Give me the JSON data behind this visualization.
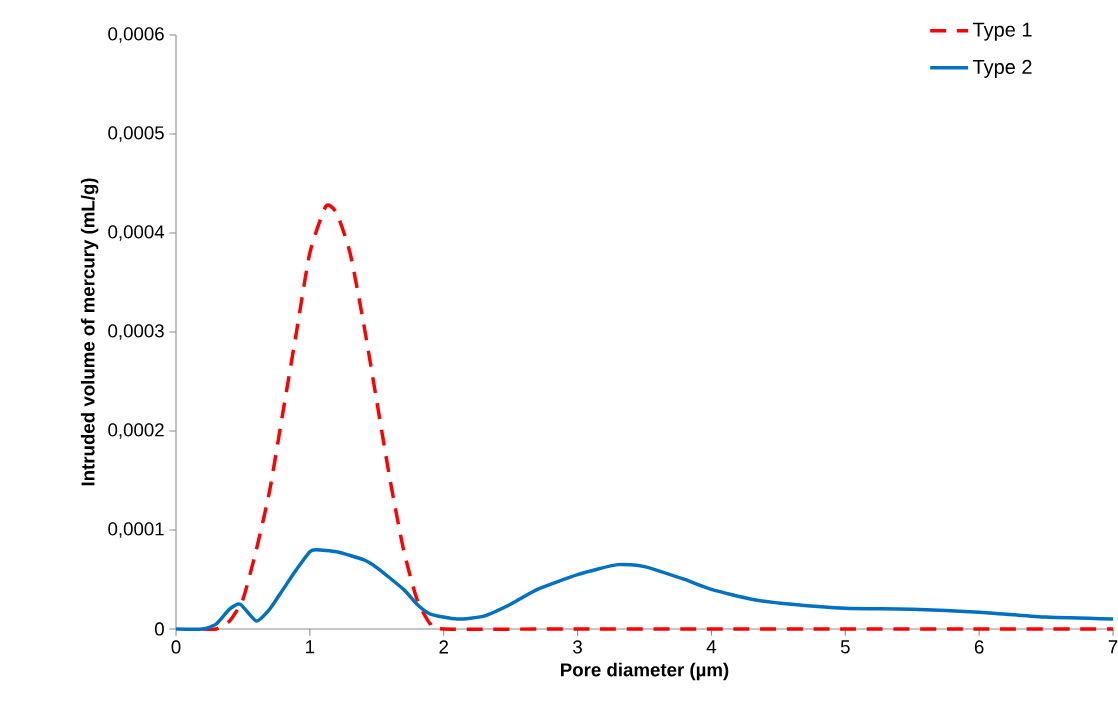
{
  "chart_data": {
    "type": "line",
    "xlabel": "Pore diameter (µm)",
    "ylabel": "Intruded volume of mercury (mL/g)",
    "xlim": [
      0,
      7
    ],
    "xticks": [
      0,
      1,
      2,
      3,
      4,
      5,
      6,
      7
    ],
    "ylim": [
      0,
      0.0006
    ],
    "yticks": [
      0,
      {
        "value": 0.0001,
        "label": "0,0001"
      },
      {
        "value": 0.0002,
        "label": "0,0002"
      },
      {
        "value": 0.0003,
        "label": "0,0003"
      },
      {
        "value": 0.0004,
        "label": "0,0004"
      },
      {
        "value": 0.0005,
        "label": "0,0005"
      },
      {
        "value": 0.0006,
        "label": "0,0006"
      }
    ],
    "grid": false,
    "legend": "top right",
    "marker": "none",
    "series": [
      {
        "name": "Type 1",
        "color": "#ff0000",
        "line_style": "dashed",
        "x": [
          0.2,
          0.3,
          0.4,
          0.5,
          0.6,
          0.7,
          0.8,
          0.9,
          1.0,
          1.12,
          1.2,
          1.3,
          1.4,
          1.5,
          1.6,
          1.7,
          1.8,
          1.9,
          2.0,
          3.0,
          4.0,
          5.0,
          6.0,
          7.0
        ],
        "values": [
          0,
          0,
          8e-06,
          3e-05,
          8e-05,
          0.00014,
          0.00022,
          0.0003,
          0.00038,
          0.000427,
          0.00042,
          0.00038,
          0.00031,
          0.00023,
          0.00015,
          8e-05,
          3e-05,
          5e-06,
          0,
          0,
          0,
          0,
          0,
          0
        ]
      },
      {
        "name": "Type 2",
        "color": "#0070c0",
        "line_style": "solid",
        "x": [
          0,
          0.2,
          0.3,
          0.4,
          0.48,
          0.6,
          0.7,
          0.8,
          0.9,
          1.0,
          1.05,
          1.2,
          1.4,
          1.5,
          1.7,
          1.8,
          1.9,
          2.1,
          2.3,
          2.5,
          2.7,
          3.0,
          3.3,
          3.5,
          3.8,
          4.0,
          4.3,
          4.6,
          5.0,
          5.5,
          6.0,
          6.5,
          7.0
        ],
        "values": [
          0,
          0,
          5e-06,
          2e-05,
          2.5e-05,
          8e-06,
          2e-05,
          4e-05,
          6e-05,
          7.8e-05,
          8e-05,
          7.8e-05,
          7e-05,
          6.2e-05,
          4e-05,
          2.5e-05,
          1.5e-05,
          1e-05,
          1.3e-05,
          2.5e-05,
          4e-05,
          5.5e-05,
          6.5e-05,
          6.3e-05,
          5e-05,
          4e-05,
          3e-05,
          2.5e-05,
          2.1e-05,
          2e-05,
          1.7e-05,
          1.2e-05,
          1e-05
        ]
      }
    ]
  }
}
